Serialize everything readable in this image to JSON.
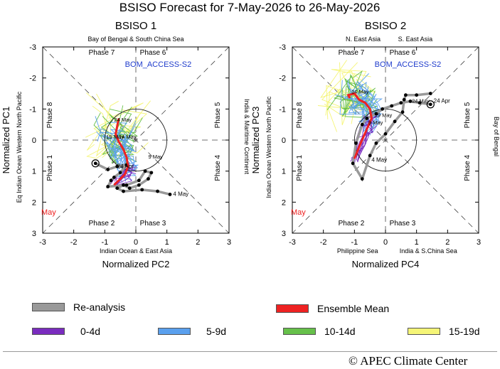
{
  "title": "BSISO Forecast for 7-May-2026 to 26-May-2026",
  "colors": {
    "reanalysis": "#999999",
    "ensemble_mean": "#ee2222",
    "d0_4": "#7a2cbf",
    "d5_9": "#5aa0ee",
    "d10_14": "#66c04a",
    "d15_19": "#f5f577",
    "model_label": "#1f3ccc",
    "month_label": "#ee2222"
  },
  "legend": {
    "reanalysis": "Re-analysis",
    "ensemble_mean": "Ensemble Mean",
    "d0_4": "0-4d",
    "d5_9": "5-9d",
    "d10_14": "10-14d",
    "d15_19": "15-19d"
  },
  "footer": "© APEC Climate Center",
  "chart_data": [
    {
      "type": "line",
      "title": "BSISO 1",
      "model": "BOM_ACCESS-S2",
      "xlabel": "Normalized PC2",
      "ylabel": "Normalized PC1",
      "xlim": [
        -3,
        3
      ],
      "ylim": [
        -3,
        3
      ],
      "y_inverted": true,
      "xticks": [
        "-3",
        "-2",
        "-1",
        "0",
        "1",
        "2",
        "3"
      ],
      "yticks": [
        "-3",
        "-2",
        "-1",
        "0",
        "1",
        "2",
        "3"
      ],
      "region_top": "Bay of Bengal & South China Sea",
      "region_bottom": "Indian Ocean & East Asia",
      "region_left": "Eq Indian Ocean  Western North Pacific",
      "region_right": "India & Maritime Continent",
      "month_label": "May",
      "phases": [
        {
          "label": "Phase 7",
          "x": -1.1,
          "y": -2.75
        },
        {
          "label": "Phase 6",
          "x": 0.55,
          "y": -2.75
        },
        {
          "label": "Phase 8",
          "x": -2.7,
          "y": -0.8
        },
        {
          "label": "Phase 5",
          "x": 2.7,
          "y": -0.8
        },
        {
          "label": "Phase 1",
          "x": -2.7,
          "y": 0.9
        },
        {
          "label": "Phase 4",
          "x": 2.7,
          "y": 0.9
        },
        {
          "label": "Phase 2",
          "x": -1.1,
          "y": 2.75
        },
        {
          "label": "Phase 3",
          "x": 0.55,
          "y": 2.75
        }
      ],
      "reanalysis": {
        "x": [
          -1.3,
          -0.9,
          -0.6,
          -0.3,
          -0.5,
          -0.7,
          -0.8,
          -0.9,
          -0.3,
          0.1,
          0.3,
          0.5,
          0.4,
          0.1,
          -0.2,
          -0.4,
          -0.6,
          -0.4,
          0.2,
          0.7,
          1.1
        ],
        "y": [
          0.75,
          0.95,
          0.85,
          0.8,
          1.05,
          1.2,
          1.3,
          1.5,
          1.45,
          1.3,
          1.0,
          1.05,
          1.25,
          1.45,
          1.55,
          1.45,
          1.55,
          1.65,
          1.6,
          1.65,
          1.75
        ]
      },
      "reanalysis_labels": [
        {
          "text": "24  Apr",
          "x": -0.6,
          "y": 0.9
        },
        {
          "text": "4  May",
          "x": 1.2,
          "y": 1.8
        }
      ],
      "ensemble_mean": {
        "x": [
          -0.7,
          -0.55,
          -0.35,
          -0.25,
          -0.3,
          -0.4,
          -0.55,
          -0.65,
          -0.6,
          -0.55
        ],
        "y": [
          1.45,
          1.3,
          1.1,
          0.85,
          0.55,
          0.3,
          0.05,
          -0.2,
          -0.45,
          -0.7
        ]
      },
      "ensemble_labels": [
        {
          "text": "9  May",
          "x": 0.4,
          "y": 0.6
        },
        {
          "text": "14  May",
          "x": -0.55,
          "y": -0.05
        },
        {
          "text": "19  May",
          "x": -0.95,
          "y": -0.05
        },
        {
          "text": "24  May",
          "x": -0.7,
          "y": -0.6
        }
      ]
    },
    {
      "type": "line",
      "title": "BSISO 2",
      "model": "BOM_ACCESS-S2",
      "xlabel": "Normalized PC4",
      "ylabel": "Normalized PC3",
      "xlim": [
        -3,
        3
      ],
      "ylim": [
        -3,
        3
      ],
      "y_inverted": true,
      "xticks": [
        "-3",
        "-2",
        "-1",
        "0",
        "1",
        "2",
        "3"
      ],
      "yticks": [
        "-3",
        "-2",
        "-1",
        "0",
        "1",
        "2",
        "3"
      ],
      "region_top_left": "N. East Asia",
      "region_top_right": "S. East Asia",
      "region_bottom_left": "Philippine Sea",
      "region_bottom_right": "India & S.China Sea",
      "region_left": "Indian Ocean  Western North Pacific",
      "region_right": "Bay of Bengal",
      "month_label": "May",
      "phases": [
        {
          "label": "Phase 7",
          "x": -1.1,
          "y": -2.75
        },
        {
          "label": "Phase 6",
          "x": 0.55,
          "y": -2.75
        },
        {
          "label": "Phase 8",
          "x": -2.7,
          "y": -0.8
        },
        {
          "label": "Phase 5",
          "x": 2.7,
          "y": -0.8
        },
        {
          "label": "Phase 1",
          "x": -2.7,
          "y": 0.9
        },
        {
          "label": "Phase 4",
          "x": 2.7,
          "y": 0.9
        },
        {
          "label": "Phase 2",
          "x": -1.1,
          "y": 2.75
        },
        {
          "label": "Phase 3",
          "x": 0.55,
          "y": 2.75
        }
      ],
      "reanalysis": {
        "x": [
          1.45,
          1.1,
          0.8,
          0.5,
          0.2,
          -0.1,
          -0.3,
          -0.6,
          -0.75,
          -0.95,
          -1.05,
          -0.75,
          -0.5,
          -0.3,
          0.0,
          0.3,
          0.55,
          0.6,
          0.65,
          1.0,
          1.45
        ],
        "y": [
          -1.15,
          -1.2,
          -1.25,
          -1.2,
          -1.1,
          -1.0,
          -0.85,
          -0.7,
          -0.5,
          0.1,
          0.75,
          1.25,
          0.5,
          0.1,
          -0.2,
          -0.6,
          -0.9,
          -1.3,
          -1.45,
          -1.45,
          -1.5
        ]
      },
      "reanalysis_labels": [
        {
          "text": "24  Apr",
          "x": 1.55,
          "y": -1.2
        },
        {
          "text": "4  May",
          "x": -0.45,
          "y": 0.7
        }
      ],
      "ensemble_mean": {
        "x": [
          -1.0,
          -0.8,
          -0.6,
          -0.45,
          -0.5,
          -0.65,
          -0.85,
          -1.0,
          -1.2,
          -1.15
        ],
        "y": [
          0.6,
          0.1,
          -0.35,
          -0.7,
          -1.0,
          -1.2,
          -1.3,
          -1.5,
          -1.45,
          -1.35
        ]
      },
      "ensemble_labels": [
        {
          "text": "9  May",
          "x": -0.55,
          "y": -0.5
        },
        {
          "text": "14  May",
          "x": -1.1,
          "y": -1.5
        },
        {
          "text": "19  May",
          "x": -0.35,
          "y": -0.75
        },
        {
          "text": "24  May",
          "x": 0.85,
          "y": -1.2
        }
      ]
    }
  ]
}
